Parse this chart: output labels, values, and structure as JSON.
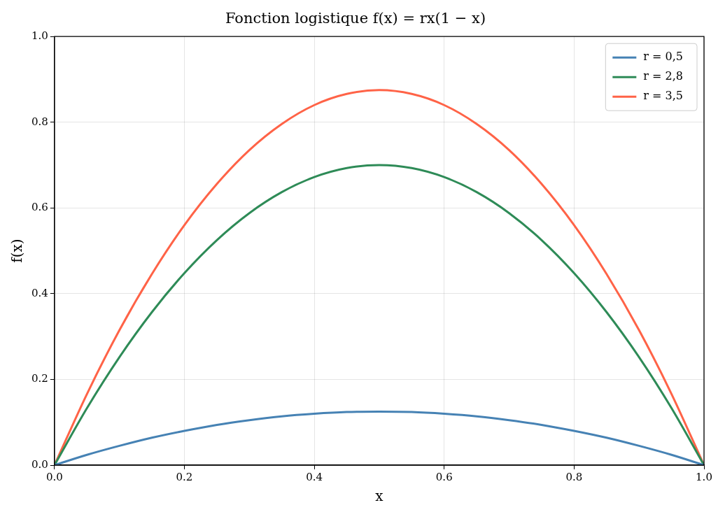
{
  "chart_data": {
    "type": "line",
    "title": "Fonction logistique f(x) = rx(1 − x)",
    "xlabel": "x",
    "ylabel": "f(x)",
    "x": [
      0,
      0.05,
      0.1,
      0.15,
      0.2,
      0.25,
      0.3,
      0.35,
      0.4,
      0.45,
      0.5,
      0.55,
      0.6,
      0.65,
      0.7,
      0.75,
      0.8,
      0.85,
      0.9,
      0.95,
      1
    ],
    "series": [
      {
        "name": "r = 0,5",
        "color": "#4682b4",
        "values": [
          0,
          0.024,
          0.045,
          0.064,
          0.08,
          0.094,
          0.105,
          0.114,
          0.12,
          0.124,
          0.125,
          0.124,
          0.12,
          0.114,
          0.105,
          0.094,
          0.08,
          0.064,
          0.045,
          0.024,
          0
        ]
      },
      {
        "name": "r = 2,8",
        "color": "#2e8b57",
        "values": [
          0,
          0.133,
          0.252,
          0.357,
          0.448,
          0.525,
          0.588,
          0.637,
          0.672,
          0.693,
          0.7,
          0.693,
          0.672,
          0.637,
          0.588,
          0.525,
          0.448,
          0.357,
          0.252,
          0.133,
          0
        ]
      },
      {
        "name": "r = 3,5",
        "color": "#ff6347",
        "values": [
          0,
          0.166,
          0.315,
          0.446,
          0.56,
          0.656,
          0.735,
          0.796,
          0.84,
          0.866,
          0.875,
          0.866,
          0.84,
          0.796,
          0.735,
          0.656,
          0.56,
          0.446,
          0.315,
          0.166,
          0
        ]
      }
    ],
    "xlim": [
      0,
      1
    ],
    "ylim": [
      0,
      1
    ],
    "xticks": [
      {
        "value": 0,
        "label": "0.0"
      },
      {
        "value": 0.2,
        "label": "0.2"
      },
      {
        "value": 0.4,
        "label": "0.4"
      },
      {
        "value": 0.6,
        "label": "0.6"
      },
      {
        "value": 0.8,
        "label": "0.8"
      },
      {
        "value": 1,
        "label": "1.0"
      }
    ],
    "yticks": [
      {
        "value": 0,
        "label": "0.0"
      },
      {
        "value": 0.2,
        "label": "0.2"
      },
      {
        "value": 0.4,
        "label": "0.4"
      },
      {
        "value": 0.6,
        "label": "0.6"
      },
      {
        "value": 0.8,
        "label": "0.8"
      },
      {
        "value": 1,
        "label": "1.0"
      }
    ],
    "grid": true,
    "legend": "top right",
    "marker": "none",
    "line_style": "solid"
  }
}
